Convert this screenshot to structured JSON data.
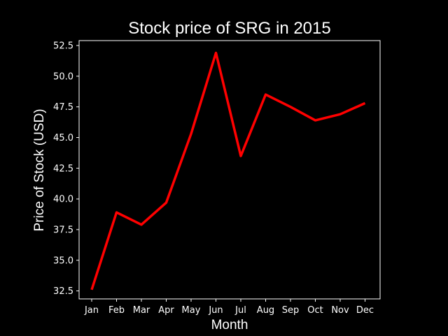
{
  "chart_data": {
    "type": "line",
    "title": "Stock price of SRG in 2015",
    "xlabel": "Month",
    "ylabel": "Price of Stock (USD)",
    "categories": [
      "Jan",
      "Feb",
      "Mar",
      "Apr",
      "May",
      "Jun",
      "Jul",
      "Aug",
      "Sep",
      "Oct",
      "Nov",
      "Dec"
    ],
    "series": [
      {
        "values": [
          32.6,
          38.9,
          37.9,
          39.7,
          45.3,
          51.9,
          43.5,
          48.5,
          47.5,
          46.4,
          46.9,
          47.8
        ],
        "color": "#ff0000"
      }
    ],
    "yticks": [
      32.5,
      35.0,
      37.5,
      40.0,
      42.5,
      45.0,
      47.5,
      50.0,
      52.5
    ],
    "ylim": [
      31.85,
      52.9
    ],
    "grid": false,
    "background": "#000000",
    "axis_color": "#ffffff"
  }
}
